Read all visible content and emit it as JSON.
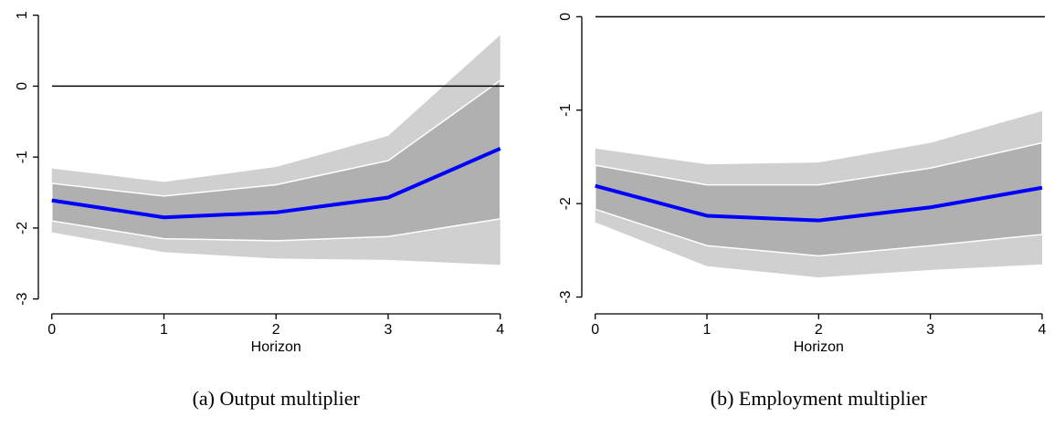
{
  "chart_data": [
    {
      "type": "line",
      "caption": "(a) Output multiplier",
      "xlabel": "Horizon",
      "x": [
        0,
        1,
        2,
        3,
        4
      ],
      "xlim": [
        -0.12,
        4.1
      ],
      "xticks": [
        0,
        1,
        2,
        3,
        4
      ],
      "ylim": [
        -3.21,
        1.15
      ],
      "yticks": [
        1,
        0,
        -1,
        -2,
        -3
      ],
      "reference_line": {
        "value": 0,
        "color": "#000000"
      },
      "bands": [
        {
          "color": "#d0d0d0",
          "upper": [
            -1.16,
            -1.35,
            -1.14,
            -0.7,
            0.72
          ],
          "lower": [
            -2.06,
            -2.34,
            -2.43,
            -2.45,
            -2.52
          ]
        },
        {
          "color": "#b0b0b0",
          "upper": [
            -1.37,
            -1.55,
            -1.39,
            -1.05,
            0.08
          ],
          "lower": [
            -1.9,
            -2.15,
            -2.18,
            -2.12,
            -1.87
          ]
        }
      ],
      "series": [
        {
          "color": "#0000ff",
          "values": [
            -1.61,
            -1.85,
            -1.78,
            -1.57,
            -0.88
          ]
        }
      ]
    },
    {
      "type": "line",
      "caption": "(b) Employment multiplier",
      "xlabel": "Horizon",
      "x": [
        0,
        1,
        2,
        3,
        4
      ],
      "xlim": [
        -0.12,
        4.09
      ],
      "xticks": [
        0,
        1,
        2,
        3,
        4
      ],
      "ylim": [
        -3.18,
        0.13
      ],
      "yticks": [
        0,
        -1,
        -2,
        -3
      ],
      "reference_line": {
        "value": 0,
        "color": "#000000"
      },
      "bands": [
        {
          "color": "#d0d0d0",
          "upper": [
            -1.41,
            -1.58,
            -1.56,
            -1.35,
            -1.01
          ],
          "lower": [
            -2.2,
            -2.67,
            -2.79,
            -2.71,
            -2.65
          ]
        },
        {
          "color": "#b0b0b0",
          "upper": [
            -1.59,
            -1.8,
            -1.8,
            -1.62,
            -1.35
          ],
          "lower": [
            -2.06,
            -2.45,
            -2.56,
            -2.45,
            -2.33
          ]
        }
      ],
      "series": [
        {
          "color": "#0000ff",
          "values": [
            -1.81,
            -2.13,
            -2.18,
            -2.04,
            -1.83
          ]
        }
      ]
    }
  ]
}
